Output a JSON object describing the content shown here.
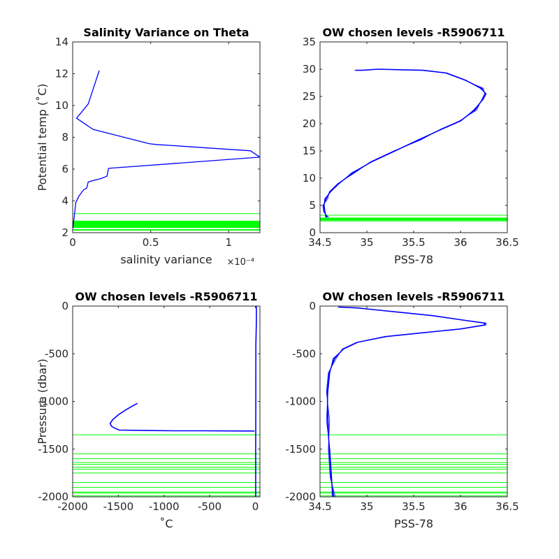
{
  "colors": {
    "profile": "#0000ff",
    "levels": "#00ff00",
    "axis": "#262626"
  },
  "chart_data": [
    {
      "type": "line",
      "title": "Salinity Variance on Theta",
      "xlabel": "salinity variance",
      "x_exponent": "×10⁻⁴",
      "ylabel": "Potential temp (˚C)",
      "xlim": [
        0,
        0.00012
      ],
      "ylim": [
        2,
        14
      ],
      "xticks": [
        0,
        5e-05,
        0.0001
      ],
      "xticklabels": [
        "0",
        "0.5",
        "1"
      ],
      "yticks": [
        2,
        4,
        6,
        8,
        10,
        12,
        14
      ],
      "yticklabels": [
        "2",
        "4",
        "6",
        "8",
        "10",
        "12",
        "14"
      ],
      "series": [
        {
          "x": [
            1.7e-05,
            1e-05,
            2.5e-06,
            1.3e-05,
            4.9e-05,
            5.3e-05,
            0.000114,
            0.00012,
            2.3e-05,
            2.2e-05,
            1.8e-05,
            1e-05,
            9e-06,
            7e-06,
            4e-06,
            2e-06,
            1e-06,
            5e-07,
            3e-07
          ],
          "y": [
            12.2,
            10.1,
            9.2,
            8.5,
            7.6,
            7.55,
            7.15,
            6.75,
            6.05,
            5.55,
            5.4,
            5.2,
            4.8,
            4.7,
            4.3,
            3.9,
            3.0,
            2.6,
            2.3
          ]
        }
      ],
      "level_lines": [
        3.2,
        2.7,
        2.65,
        2.6,
        2.55,
        2.5,
        2.45,
        2.4,
        2.35,
        2.2,
        2.15
      ]
    },
    {
      "type": "line",
      "title": "OW chosen levels -R5906711",
      "xlabel": "PSS-78",
      "ylabel": "",
      "xlim": [
        34.5,
        36.5
      ],
      "ylim": [
        0,
        35
      ],
      "xticks": [
        34.5,
        35,
        35.5,
        36,
        36.5
      ],
      "xticklabels": [
        "34.5",
        "35",
        "35.5",
        "36",
        "36.5"
      ],
      "yticks": [
        0,
        5,
        10,
        15,
        20,
        25,
        30,
        35
      ],
      "yticklabels": [
        "0",
        "5",
        "10",
        "15",
        "20",
        "25",
        "30",
        "35"
      ],
      "series": [
        {
          "x": [
            34.57,
            34.55,
            34.54,
            34.56,
            34.61,
            34.7,
            34.85,
            35.05,
            35.3,
            35.55,
            35.8,
            36.0,
            36.15,
            36.24,
            36.27,
            36.22,
            36.05,
            35.85,
            35.6,
            35.35,
            35.12,
            34.95,
            34.88
          ],
          "y": [
            2.8,
            3.8,
            5.0,
            6.2,
            7.5,
            9.0,
            11.0,
            13.0,
            15.0,
            17.0,
            19.0,
            20.5,
            22.5,
            24.5,
            25.5,
            26.5,
            28.0,
            29.3,
            29.8,
            29.9,
            30.0,
            29.8,
            29.8
          ]
        }
      ],
      "level_lines": [
        3.2,
        2.7,
        2.65,
        2.6,
        2.55,
        2.5,
        2.45,
        2.4,
        2.35,
        2.2,
        2.15
      ]
    },
    {
      "type": "line",
      "title": "OW chosen levels -R5906711",
      "xlabel": "˚C",
      "ylabel": "Pressure (dbar)",
      "xlim": [
        -2000,
        50
      ],
      "ylim": [
        -2000,
        0
      ],
      "xticks": [
        -2000,
        -1500,
        -1000,
        -500,
        0
      ],
      "xticklabels": [
        "-2000",
        "-1500",
        "-1000",
        "-500",
        "0"
      ],
      "yticks": [
        -2000,
        -1500,
        -1000,
        -500,
        0
      ],
      "yticklabels": [
        "-2000",
        "-1500",
        "-1000",
        "-500",
        "0"
      ],
      "series": [
        {
          "x": [
            -1290,
            -1350,
            -1420,
            -1500,
            -1560,
            -1590,
            -1575,
            -1540,
            -1490,
            -1200,
            -900,
            -600,
            -300,
            -100,
            -10
          ],
          "y": [
            -1020,
            -1050,
            -1090,
            -1140,
            -1190,
            -1230,
            -1260,
            -1280,
            -1300,
            -1305,
            -1308,
            -1308,
            -1309,
            -1310,
            -1310
          ]
        },
        {
          "x": [
            3,
            3,
            4,
            5,
            5,
            6,
            10,
            12
          ],
          "y": [
            -2000,
            -1500,
            -1300,
            -1000,
            -700,
            -400,
            -200,
            0
          ]
        }
      ],
      "level_lines": [
        -1350,
        -1550,
        -1600,
        -1640,
        -1660,
        -1690,
        -1710,
        -1750,
        -1850,
        -1900,
        -1950,
        -1960,
        -1990
      ]
    },
    {
      "type": "line",
      "title": "OW chosen levels -R5906711",
      "xlabel": "PSS-78",
      "ylabel": "",
      "xlim": [
        34.5,
        36.5
      ],
      "ylim": [
        -2000,
        0
      ],
      "xticks": [
        34.5,
        35,
        35.5,
        36,
        36.5
      ],
      "xticklabels": [
        "34.5",
        "35",
        "35.5",
        "36",
        "36.5"
      ],
      "yticks": [
        -2000,
        -1500,
        -1000,
        -500,
        0
      ],
      "yticklabels": [
        "-2000",
        "-1500",
        "-1000",
        "-500",
        "0"
      ],
      "series": [
        {
          "x": [
            34.64,
            34.62,
            34.6,
            34.58,
            34.58,
            34.6,
            34.65,
            34.75,
            34.9,
            35.2,
            35.6,
            36.0,
            36.25,
            36.27,
            36.05,
            35.7,
            35.4,
            35.1,
            34.9,
            34.7
          ],
          "y": [
            -2000,
            -1800,
            -1500,
            -1200,
            -900,
            -700,
            -550,
            -450,
            -380,
            -320,
            -280,
            -240,
            -200,
            -180,
            -150,
            -100,
            -70,
            -40,
            -20,
            -10
          ]
        }
      ],
      "level_lines": [
        -1350,
        -1550,
        -1600,
        -1640,
        -1660,
        -1690,
        -1710,
        -1750,
        -1850,
        -1900,
        -1950,
        -1960,
        -1990
      ]
    }
  ]
}
